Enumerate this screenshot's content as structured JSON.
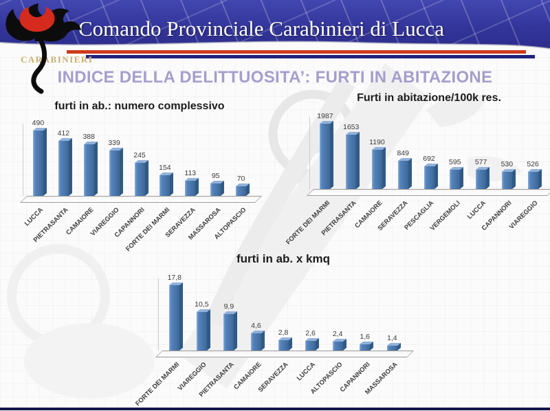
{
  "header": {
    "title": "Comando Provinciale Carabinieri di Lucca",
    "corps_label": "CARABINIERI"
  },
  "slide": {
    "title": "INDICE DELLA DELITTUOSITA’: FURTI IN ABITAZIONE"
  },
  "colors": {
    "header_band": "#33359a",
    "stripe_red": "#ce3a1e",
    "stripe_blue": "#20227e",
    "slide_title": "#a59ecb",
    "bar_front": "#4a78ae",
    "bar_side": "#2f5a88",
    "bar_top": "#90b1d9",
    "footer_bar": "#15154a"
  },
  "chart_data": [
    {
      "type": "bar",
      "style": "3d-column",
      "title": "furti in ab.: numero complessivo",
      "categories": [
        "LUCCA",
        "PIETRASANTA",
        "CAMAIORE",
        "VIAREGGIO",
        "CAPANNORI",
        "FORTE DEI MARMI",
        "SERAVEZZA",
        "MASSAROSA",
        "ALTOPASCIO"
      ],
      "values": [
        490,
        412,
        388,
        339,
        245,
        154,
        113,
        95,
        70
      ],
      "value_labels": [
        "490",
        "412",
        "388",
        "339",
        "245",
        "154",
        "113",
        "95",
        "70"
      ],
      "ylim": [
        0,
        490
      ],
      "legend": "none",
      "gridlines": false
    },
    {
      "type": "bar",
      "style": "3d-column",
      "title": "Furti in abitazione/100k res.",
      "categories": [
        "FORTE DEI MARMI",
        "PIETRASANTA",
        "CAMAIORE",
        "SERAVEZZA",
        "PESCAGLIA",
        "VERGEMOLI",
        "LUCCA",
        "CAPANNORI",
        "VIAREGGIO"
      ],
      "values": [
        1987,
        1653,
        1190,
        849,
        692,
        595,
        577,
        530,
        526
      ],
      "value_labels": [
        "1987",
        "1653",
        "1190",
        "849",
        "692",
        "595",
        "577",
        "530",
        "526"
      ],
      "ylim": [
        0,
        1987
      ],
      "legend": "none",
      "gridlines": false
    },
    {
      "type": "bar",
      "style": "3d-column",
      "title": "furti in ab. x kmq",
      "categories": [
        "FORTE DEI MARMI",
        "VIAREGGIO",
        "PIETRASANTA",
        "CAMAIORE",
        "SERAVEZZA",
        "LUCCA",
        "ALTOPASCIO",
        "CAPANNORI",
        "MASSAROSA"
      ],
      "values": [
        17.8,
        10.5,
        9.9,
        4.6,
        2.8,
        2.6,
        2.4,
        1.6,
        1.4
      ],
      "value_labels": [
        "17,8",
        "10,5",
        "9,9",
        "4,6",
        "2,8",
        "2,6",
        "2,4",
        "1,6",
        "1,4"
      ],
      "ylim": [
        0,
        17.8
      ],
      "legend": "none",
      "gridlines": false
    }
  ]
}
